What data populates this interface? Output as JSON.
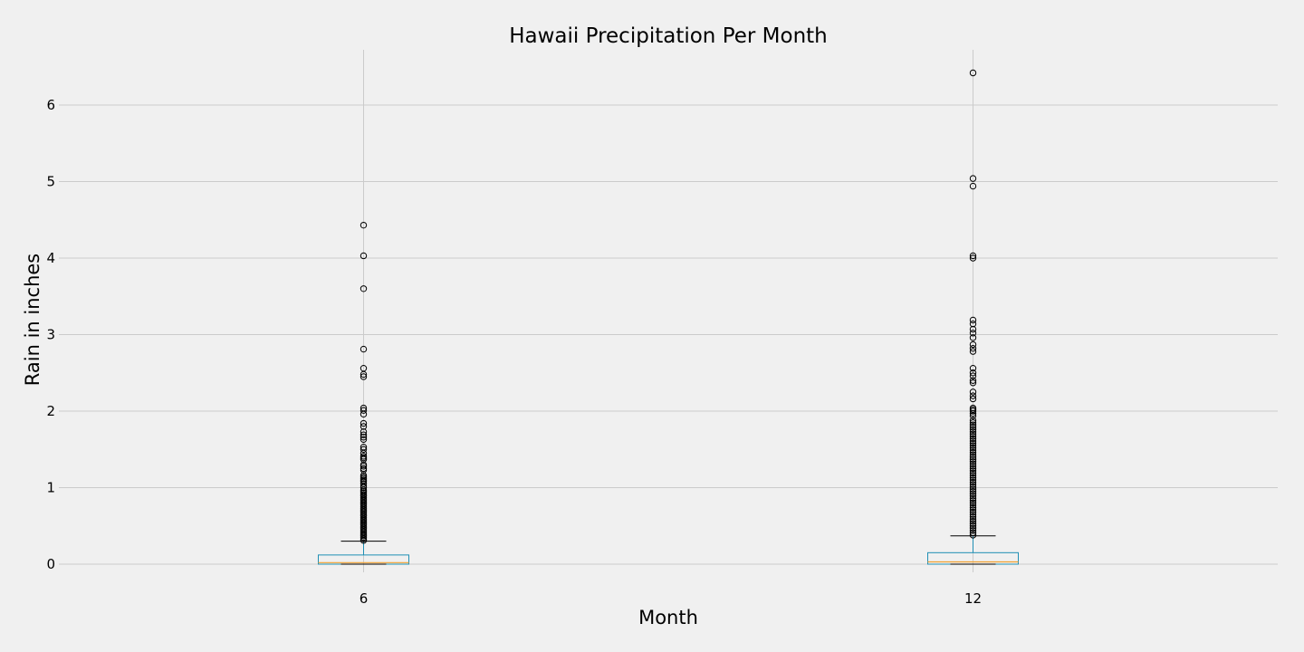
{
  "chart_data": {
    "type": "box",
    "title": "Hawaii Precipitation Per Month",
    "xlabel": "Month",
    "ylabel": "Rain in inches",
    "ylim": [
      -0.05,
      6.72
    ],
    "yticks": [
      0,
      1,
      2,
      3,
      4,
      5,
      6
    ],
    "grid": true,
    "categories": [
      "6",
      "12"
    ],
    "boxes": [
      {
        "category": "6",
        "whisker_low": 0.0,
        "q1": 0.0,
        "median": 0.02,
        "q3": 0.12,
        "whisker_high": 0.3,
        "fliers": [
          4.43,
          4.03,
          3.6,
          2.81,
          2.56,
          2.48,
          2.45,
          2.04,
          2.01,
          1.96,
          1.84,
          1.8,
          1.73,
          1.69,
          1.66,
          1.63,
          1.53,
          1.5,
          1.45,
          1.41,
          1.39,
          1.37,
          1.3,
          1.28,
          1.25,
          1.23,
          1.16,
          1.14,
          1.12,
          1.1,
          1.08,
          1.05,
          1.02,
          1.0,
          0.97,
          0.95,
          0.93,
          0.91,
          0.89,
          0.87,
          0.85,
          0.83,
          0.81,
          0.79,
          0.77,
          0.75,
          0.73,
          0.71,
          0.69,
          0.67,
          0.65,
          0.63,
          0.61,
          0.59,
          0.57,
          0.55,
          0.53,
          0.51,
          0.49,
          0.47,
          0.45,
          0.43,
          0.41,
          0.39,
          0.37,
          0.35,
          0.33,
          0.31
        ]
      },
      {
        "category": "12",
        "whisker_low": 0.0,
        "q1": 0.0,
        "median": 0.03,
        "q3": 0.15,
        "whisker_high": 0.37,
        "fliers": [
          6.42,
          5.04,
          4.94,
          4.03,
          4.0,
          3.19,
          3.14,
          3.07,
          3.02,
          2.96,
          2.87,
          2.82,
          2.78,
          2.56,
          2.5,
          2.46,
          2.4,
          2.37,
          2.25,
          2.2,
          2.16,
          2.04,
          2.02,
          2.0,
          1.97,
          1.94,
          1.88,
          1.85,
          1.82,
          1.79,
          1.76,
          1.73,
          1.7,
          1.67,
          1.64,
          1.61,
          1.58,
          1.55,
          1.52,
          1.49,
          1.46,
          1.43,
          1.4,
          1.37,
          1.34,
          1.31,
          1.28,
          1.25,
          1.22,
          1.19,
          1.16,
          1.13,
          1.1,
          1.07,
          1.04,
          1.01,
          0.98,
          0.95,
          0.92,
          0.89,
          0.86,
          0.83,
          0.8,
          0.77,
          0.74,
          0.71,
          0.68,
          0.65,
          0.62,
          0.59,
          0.56,
          0.53,
          0.5,
          0.47,
          0.44,
          0.41,
          0.38
        ]
      }
    ]
  }
}
